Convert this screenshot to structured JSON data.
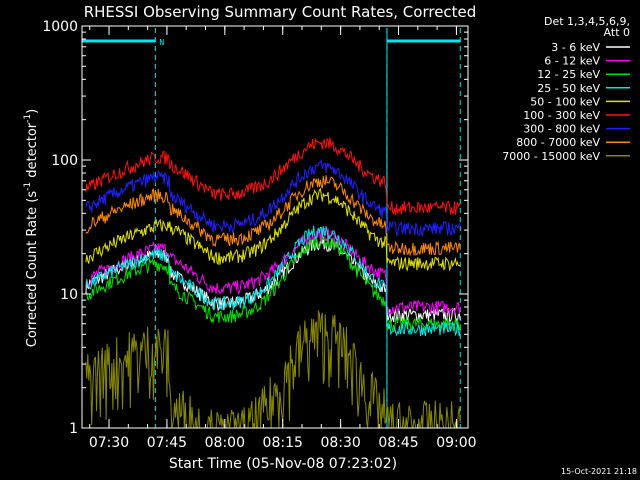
{
  "chart_data": {
    "type": "line",
    "title": "RHESSI Observing Summary Count Rates, Corrected",
    "xlabel": "Start Time (05-Nov-08 07:23:02)",
    "ylabel": "Corrected Count Rate (s-1 detector-1)",
    "ylabel_parts": {
      "main": "Corrected Count Rate (s",
      "sup1": "-1",
      "mid": " detector",
      "sup2": "-1",
      "end": ")"
    },
    "y_scale": "log",
    "ylim": [
      1,
      1000
    ],
    "y_ticks": [
      "1",
      "10",
      "100",
      "1000"
    ],
    "xlim": [
      "07:23",
      "09:03"
    ],
    "x_ticks": [
      "07:30",
      "07:45",
      "08:00",
      "08:15",
      "08:30",
      "08:45",
      "09:00"
    ],
    "legend_header": [
      "Det 1,3,4,5,6,9,",
      "Att 0"
    ],
    "legend_position": "top-right",
    "timestamp": "15-Oct-2021 21:18",
    "markers": {
      "bar_label": "N",
      "bars": [
        [
          "07:23",
          "07:42"
        ],
        [
          "08:42",
          "09:01"
        ]
      ],
      "dashed_lines": [
        "07:42",
        "08:42",
        "09:01"
      ],
      "bar_color": "#00e8e8"
    },
    "series": [
      {
        "name": "3 - 6 keV",
        "color": "#ffffff",
        "base": 10,
        "peak": 24,
        "pre": 20,
        "post": 7
      },
      {
        "name": "6 - 12 keV",
        "color": "#ff00ff",
        "base": 13,
        "peak": 28,
        "pre": 22,
        "post": 8
      },
      {
        "name": "12 - 25 keV",
        "color": "#00e000",
        "base": 8,
        "peak": 25,
        "pre": 17,
        "post": 6
      },
      {
        "name": "25 - 50 keV",
        "color": "#00e8e8",
        "base": 10,
        "peak": 30,
        "pre": 20,
        "post": 5.5
      },
      {
        "name": "50 - 100 keV",
        "color": "#e0e000",
        "base": 22,
        "peak": 55,
        "pre": 32,
        "post": 17
      },
      {
        "name": "100 - 300 keV",
        "color": "#ff1010",
        "base": 65,
        "peak": 135,
        "pre": 105,
        "post": 44
      },
      {
        "name": "300 - 800 keV",
        "color": "#2020ff",
        "base": 38,
        "peak": 90,
        "pre": 75,
        "post": 31
      },
      {
        "name": "800 - 7000 keV",
        "color": "#ff8800",
        "base": 30,
        "peak": 70,
        "pre": 55,
        "post": 22
      },
      {
        "name": "7000 - 15000 keV",
        "color": "#888800",
        "base": 1,
        "peak": 5,
        "pre": 4,
        "post": 1
      }
    ]
  }
}
